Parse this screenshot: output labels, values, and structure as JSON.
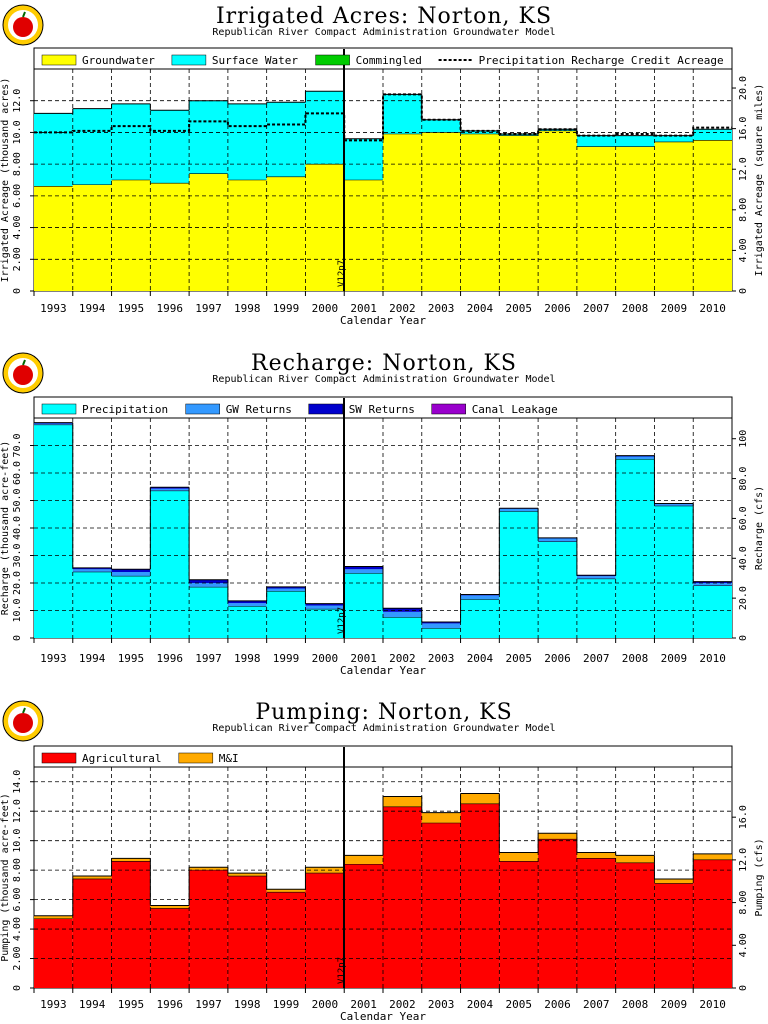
{
  "chart_data": [
    {
      "type": "area",
      "title": "Irrigated Acres: Norton, KS",
      "subtitle": "Republican River Compact Administration Groundwater Model",
      "xlabel": "Calendar Year",
      "ylabel_left": "Irrigated Acreage (thousand acres)",
      "ylabel_right": "Irrigated Acreage (square miles)",
      "marker_label": "V12p7",
      "categories": [
        "1993",
        "1994",
        "1995",
        "1996",
        "1997",
        "1998",
        "1999",
        "2000",
        "2001",
        "2002",
        "2003",
        "2004",
        "2005",
        "2006",
        "2007",
        "2008",
        "2009",
        "2010"
      ],
      "series": [
        {
          "name": "Groundwater",
          "color": "#ffff00",
          "values": [
            6.6,
            6.7,
            7.0,
            6.8,
            7.4,
            7.0,
            7.2,
            8.0,
            7.0,
            9.9,
            10.0,
            9.9,
            9.8,
            10.1,
            9.1,
            9.1,
            9.4,
            9.5
          ]
        },
        {
          "name": "Surface Water",
          "color": "#00ffff",
          "values": [
            4.6,
            4.8,
            4.8,
            4.6,
            4.6,
            4.8,
            4.7,
            4.6,
            2.6,
            2.5,
            0.8,
            0.2,
            0.1,
            0.1,
            0.7,
            0.7,
            0.4,
            0.7
          ]
        },
        {
          "name": "Commingled",
          "color": "#00cc00",
          "values": [
            0,
            0,
            0,
            0,
            0,
            0,
            0,
            0,
            0,
            0,
            0,
            0,
            0,
            0,
            0,
            0,
            0,
            0
          ]
        }
      ],
      "line": {
        "name": "Precipitation Recharge Credit Acreage",
        "values": [
          10.0,
          10.1,
          10.4,
          10.1,
          10.7,
          10.4,
          10.5,
          11.2,
          9.5,
          12.4,
          10.8,
          10.1,
          9.9,
          10.2,
          9.8,
          9.9,
          9.8,
          10.3
        ]
      },
      "ylim": [
        0,
        14
      ],
      "yticks": [
        "0",
        "2.00",
        "4.00",
        "6.00",
        "8.00",
        "10.0",
        "12.0"
      ],
      "ylim_right": [
        0,
        21.875
      ],
      "yticks_right": [
        "0",
        "4.00",
        "8.00",
        "12.0",
        "16.0",
        "20.0"
      ]
    },
    {
      "type": "area",
      "title": "Recharge: Norton, KS",
      "subtitle": "Republican River Compact Administration Groundwater Model",
      "xlabel": "Calendar Year",
      "ylabel_left": "Recharge (thousand acre-feet)",
      "ylabel_right": "Recharge (cfs)",
      "marker_label": "V12p7",
      "categories": [
        "1993",
        "1994",
        "1995",
        "1996",
        "1997",
        "1998",
        "1999",
        "2000",
        "2001",
        "2002",
        "2003",
        "2004",
        "2005",
        "2006",
        "2007",
        "2008",
        "2009",
        "2010"
      ],
      "series": [
        {
          "name": "Precipitation",
          "color": "#00ffff",
          "values": [
            77.5,
            24.0,
            22.5,
            53.5,
            18.5,
            11.5,
            17.0,
            10.5,
            23.5,
            7.5,
            3.5,
            14.0,
            46.0,
            35.0,
            21.5,
            65.0,
            48.0,
            19.0
          ]
        },
        {
          "name": "GW Returns",
          "color": "#3399ff",
          "values": [
            0.5,
            1.0,
            1.5,
            0.8,
            1.5,
            1.2,
            1.0,
            1.3,
            1.5,
            2.0,
            1.8,
            1.5,
            1.0,
            1.2,
            1.0,
            1.0,
            0.7,
            1.0
          ]
        },
        {
          "name": "SW Returns",
          "color": "#0000cc",
          "values": [
            0.3,
            0.5,
            1.0,
            0.5,
            1.2,
            0.8,
            0.6,
            0.7,
            1.0,
            1.3,
            0.5,
            0.3,
            0.2,
            0.2,
            0.3,
            0.3,
            0.2,
            0.5
          ]
        },
        {
          "name": "Canal Leakage",
          "color": "#9900cc",
          "values": [
            0,
            0,
            0,
            0,
            0,
            0,
            0,
            0,
            0,
            0,
            0,
            0,
            0,
            0,
            0,
            0,
            0,
            0
          ]
        }
      ],
      "ylim": [
        0,
        80
      ],
      "yticks": [
        "0",
        "10.0",
        "20.0",
        "30.0",
        "40.0",
        "50.0",
        "60.0",
        "70.0"
      ],
      "ylim_right": [
        0,
        110.4
      ],
      "yticks_right": [
        "0",
        "20.0",
        "40.0",
        "60.0",
        "80.0",
        "100"
      ]
    },
    {
      "type": "area",
      "title": "Pumping: Norton, KS",
      "subtitle": "Republican River Compact Administration Groundwater Model",
      "xlabel": "Calendar Year",
      "ylabel_left": "Pumping (thousand acre-feet)",
      "ylabel_right": "Pumping (cfs)",
      "marker_label": "V12p7",
      "categories": [
        "1993",
        "1994",
        "1995",
        "1996",
        "1997",
        "1998",
        "1999",
        "2000",
        "2001",
        "2002",
        "2003",
        "2004",
        "2005",
        "2006",
        "2007",
        "2008",
        "2009",
        "2010"
      ],
      "series": [
        {
          "name": "Agricultural",
          "color": "#ff0000",
          "values": [
            4.7,
            7.4,
            8.6,
            5.4,
            8.0,
            7.6,
            6.5,
            7.8,
            8.4,
            12.3,
            11.2,
            12.5,
            8.6,
            10.1,
            8.8,
            8.5,
            7.1,
            8.7
          ]
        },
        {
          "name": "M&I",
          "color": "#ffaa00",
          "values": [
            0.2,
            0.2,
            0.2,
            0.2,
            0.2,
            0.2,
            0.2,
            0.4,
            0.6,
            0.7,
            0.7,
            0.7,
            0.6,
            0.4,
            0.4,
            0.5,
            0.3,
            0.4
          ]
        }
      ],
      "ylim": [
        0,
        15
      ],
      "yticks": [
        "0",
        "2.00",
        "4.00",
        "6.00",
        "8.00",
        "10.0",
        "12.0",
        "14.0"
      ],
      "ylim_right": [
        0,
        20.7
      ],
      "yticks_right": [
        "0",
        "4.00",
        "8.00",
        "12.0",
        "16.0"
      ]
    }
  ]
}
